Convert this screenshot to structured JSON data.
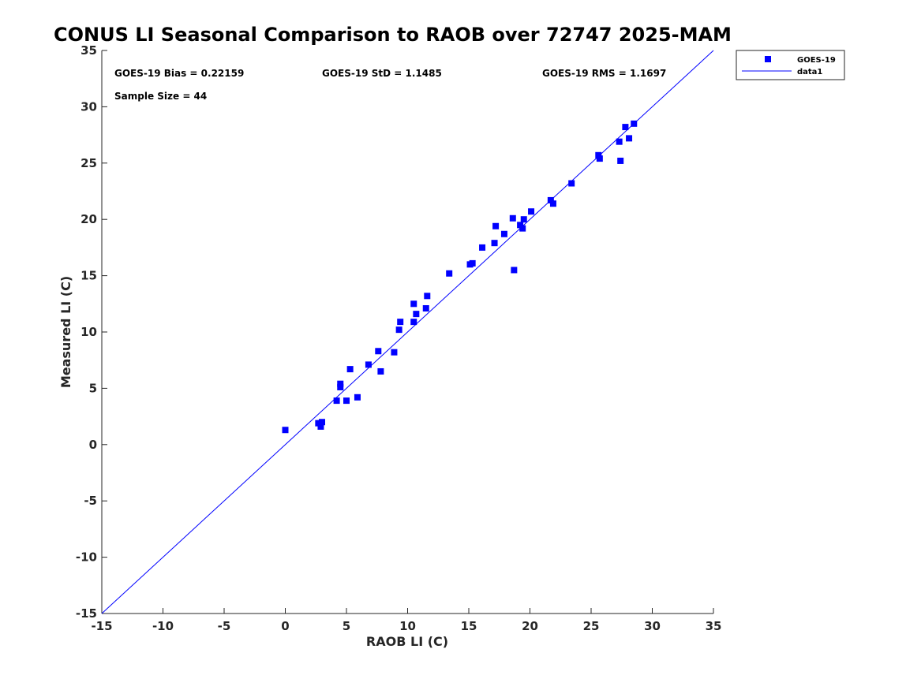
{
  "chart_data": {
    "type": "scatter",
    "title": "CONUS LI Seasonal Comparison to RAOB over 72747 2025-MAM",
    "xlabel": "RAOB LI (C)",
    "ylabel": "Measured LI (C)",
    "xlim": [
      -15,
      35
    ],
    "ylim": [
      -15,
      35
    ],
    "xticks": [
      "-15",
      "-10",
      "-5",
      "0",
      "5",
      "10",
      "15",
      "20",
      "25",
      "30",
      "35"
    ],
    "yticks": [
      "-15",
      "-10",
      "-5",
      "0",
      "5",
      "10",
      "15",
      "20",
      "25",
      "30",
      "35"
    ],
    "stats": {
      "bias": "GOES-19 Bias = 0.22159",
      "std": "GOES-19 StD = 1.1485",
      "rms": "GOES-19 RMS = 1.1697",
      "sample": "Sample Size = 44"
    },
    "legend": {
      "position": "top-right",
      "entries": [
        "GOES-19",
        "data1"
      ]
    },
    "colors": {
      "series": "#0000ff",
      "line": "#0000ff"
    },
    "line": {
      "name": "data1",
      "x": [
        -15,
        35
      ],
      "y": [
        -15,
        35
      ]
    },
    "series": [
      {
        "name": "GOES-19",
        "points": [
          [
            0.0,
            1.3
          ],
          [
            2.7,
            1.9
          ],
          [
            2.9,
            1.6
          ],
          [
            3.0,
            2.0
          ],
          [
            4.2,
            3.9
          ],
          [
            4.5,
            5.1
          ],
          [
            4.5,
            5.4
          ],
          [
            5.0,
            3.9
          ],
          [
            5.3,
            6.7
          ],
          [
            5.9,
            4.2
          ],
          [
            6.8,
            7.1
          ],
          [
            7.6,
            8.3
          ],
          [
            7.8,
            6.5
          ],
          [
            8.9,
            8.2
          ],
          [
            9.3,
            10.2
          ],
          [
            9.4,
            10.9
          ],
          [
            10.5,
            10.9
          ],
          [
            10.5,
            12.5
          ],
          [
            10.7,
            11.6
          ],
          [
            11.5,
            12.1
          ],
          [
            11.6,
            13.2
          ],
          [
            13.4,
            15.2
          ],
          [
            15.1,
            16.0
          ],
          [
            15.3,
            16.1
          ],
          [
            16.1,
            17.5
          ],
          [
            17.1,
            17.9
          ],
          [
            17.2,
            19.4
          ],
          [
            17.9,
            18.7
          ],
          [
            18.6,
            20.1
          ],
          [
            18.7,
            15.5
          ],
          [
            19.2,
            19.5
          ],
          [
            19.4,
            19.2
          ],
          [
            19.5,
            20.0
          ],
          [
            20.1,
            20.7
          ],
          [
            21.7,
            21.7
          ],
          [
            21.9,
            21.4
          ],
          [
            23.4,
            23.2
          ],
          [
            25.6,
            25.7
          ],
          [
            25.7,
            25.4
          ],
          [
            27.3,
            26.9
          ],
          [
            27.4,
            25.2
          ],
          [
            27.8,
            28.2
          ],
          [
            28.1,
            27.2
          ],
          [
            28.5,
            28.5
          ]
        ]
      }
    ]
  }
}
